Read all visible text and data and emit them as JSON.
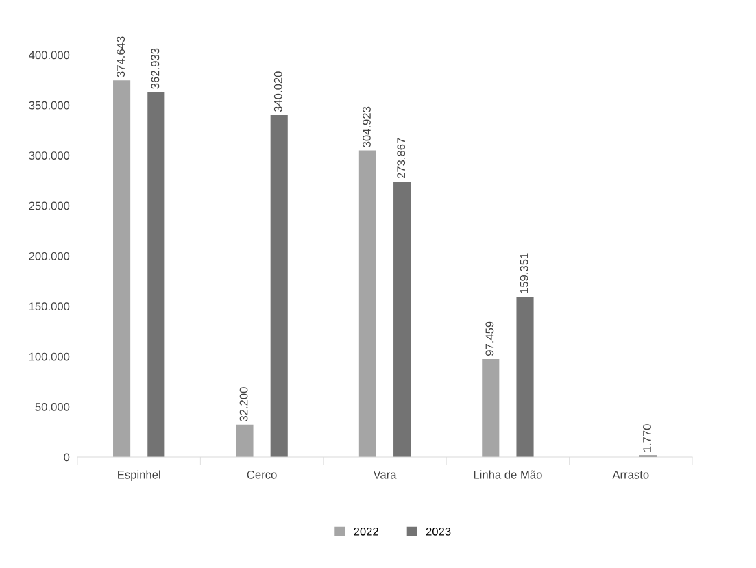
{
  "chart_data": {
    "type": "bar",
    "categories": [
      "Espinhel",
      "Cerco",
      "Vara",
      "Linha de Mão",
      "Arrasto"
    ],
    "series": [
      {
        "name": "2022",
        "color": "#a5a5a5",
        "values": [
          374643,
          32200,
          304923,
          97459,
          null
        ],
        "value_labels": [
          "374.643",
          "32.200",
          "304.923",
          "97.459",
          null
        ]
      },
      {
        "name": "2023",
        "color": "#737373",
        "values": [
          362933,
          340020,
          273867,
          159351,
          1770
        ],
        "value_labels": [
          "362.933",
          "340.020",
          "273.867",
          "159.351",
          "1.770"
        ]
      }
    ],
    "ylim": [
      0,
      400000
    ],
    "yticks": [
      {
        "value": 0,
        "label": "0"
      },
      {
        "value": 50000,
        "label": "50.000"
      },
      {
        "value": 100000,
        "label": "100.000"
      },
      {
        "value": 150000,
        "label": "150.000"
      },
      {
        "value": 200000,
        "label": "200.000"
      },
      {
        "value": 250000,
        "label": "250.000"
      },
      {
        "value": 300000,
        "label": "300.000"
      },
      {
        "value": 350000,
        "label": "350.000"
      },
      {
        "value": 400000,
        "label": "400.000"
      }
    ],
    "grid": false,
    "legend": "bottom"
  }
}
